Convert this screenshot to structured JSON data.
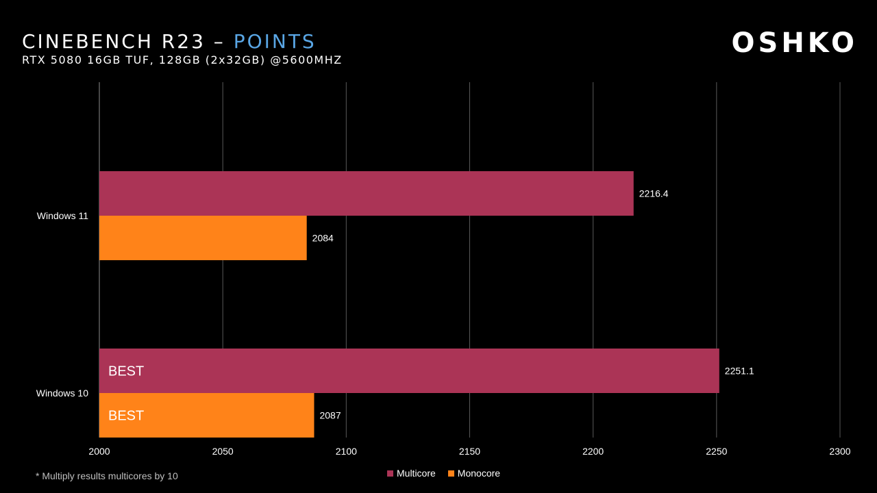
{
  "header": {
    "title_main": "CINEBENCH R23 – ",
    "title_accent": "POINTS",
    "subtitle": "RTX 5080 16GB TUF, 128GB (2x32GB) @5600MHZ",
    "logo": "OSHKO"
  },
  "footnote": "* Multiply results multicores by 10",
  "colors": {
    "multicore": "#ab3456",
    "monocore": "#ff8319",
    "accent": "#5aa7e6",
    "grid": "#595959"
  },
  "chart_data": {
    "type": "bar",
    "orientation": "horizontal",
    "categories": [
      "Windows 11",
      "Windows 10"
    ],
    "series": [
      {
        "name": "Multicore",
        "values": [
          2216.4,
          2251.1
        ],
        "labels": [
          "2216.4",
          "2251.1"
        ],
        "badges": [
          "",
          "BEST"
        ]
      },
      {
        "name": "Monocore",
        "values": [
          2084,
          2087
        ],
        "labels": [
          "2084",
          "2087"
        ],
        "badges": [
          "",
          "BEST"
        ]
      }
    ],
    "xlim": [
      2000,
      2300
    ],
    "xticks": [
      "2000",
      "2050",
      "2100",
      "2150",
      "2200",
      "2250",
      "2300"
    ],
    "grid": true,
    "legend": "bottom-center"
  }
}
